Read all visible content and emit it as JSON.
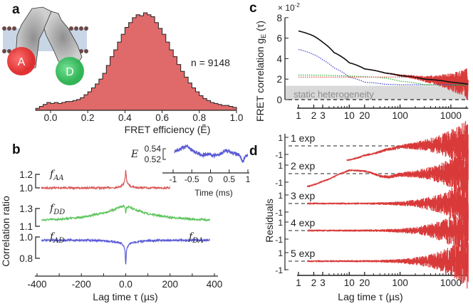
{
  "panel_labels": {
    "a": "a",
    "b": "b",
    "c": "c",
    "d": "d"
  },
  "cartoon": {
    "acceptor_label": "A",
    "donor_label": "D"
  },
  "colors": {
    "hist_fill": "#e06a6a",
    "red": "#d93a3a",
    "green": "#5cc45c",
    "blue": "#5b5bd6",
    "fit": "#111111",
    "static_band": "#d9d9d9"
  },
  "chart_data": [
    {
      "id": "a",
      "type": "bar",
      "title": "",
      "xlabel": "FRET efficiency (Ẽ)",
      "xlim": [
        -0.08,
        1.0
      ],
      "bin_width": 0.02,
      "bin_start": -0.08,
      "values_relative": [
        0.02,
        0.04,
        0.06,
        0.08,
        0.07,
        0.08,
        0.07,
        0.08,
        0.09,
        0.09,
        0.1,
        0.11,
        0.13,
        0.16,
        0.19,
        0.23,
        0.27,
        0.32,
        0.38,
        0.46,
        0.55,
        0.62,
        0.7,
        0.78,
        0.85,
        0.9,
        0.95,
        0.98,
        0.97,
        1.0,
        0.98,
        0.96,
        0.9,
        0.84,
        0.78,
        0.7,
        0.62,
        0.55,
        0.47,
        0.4,
        0.34,
        0.28,
        0.23,
        0.19,
        0.15,
        0.12,
        0.1,
        0.08,
        0.07,
        0.06,
        0.05,
        0.05,
        0.04,
        0.03
      ],
      "xticks": [
        0.0,
        0.2,
        0.4,
        0.6,
        0.8,
        1.0
      ],
      "xtick_labels": [
        "0.0",
        "0.2",
        "0.4",
        "0.6",
        "0.8",
        "1.0"
      ],
      "annotation": "n = 9148"
    },
    {
      "id": "b",
      "type": "line",
      "xlabel": "Lag time τ (µs)",
      "ylabel": "Correlation ratio",
      "xlim": [
        -400,
        400
      ],
      "xticks": [
        -400,
        -200,
        0,
        200,
        400
      ],
      "xtick_labels": [
        "-400",
        "-200",
        "0.0",
        "200",
        "400"
      ],
      "series": [
        {
          "name": "f_AA",
          "label": "fAA",
          "sub": "AA",
          "color": "#d95a5a",
          "ticks": [
            1.2,
            1.0
          ],
          "tick_labels": [
            "1.2",
            "1.0"
          ],
          "x": [
            -380,
            -200,
            -100,
            -50,
            -25,
            -12,
            -6,
            -3,
            0,
            3,
            6,
            12,
            25,
            50,
            100,
            200
          ],
          "y": [
            1.0,
            1.0,
            1.0,
            1.005,
            1.02,
            1.05,
            1.09,
            1.14,
            1.27,
            1.14,
            1.09,
            1.05,
            1.02,
            1.005,
            1.0,
            1.0
          ]
        },
        {
          "name": "f_DD",
          "label": "fDD",
          "sub": "DD",
          "color": "#5cc45c",
          "ticks": [
            1.3,
            1.1
          ],
          "tick_labels": [
            "1.3",
            "1.1"
          ],
          "x": [
            -380,
            -300,
            -200,
            -100,
            -50,
            -20,
            -8,
            -3,
            0,
            3,
            8,
            20,
            50,
            100,
            200,
            300,
            380
          ],
          "y": [
            1.17,
            1.18,
            1.2,
            1.25,
            1.29,
            1.32,
            1.33,
            1.3,
            1.24,
            1.3,
            1.32,
            1.31,
            1.28,
            1.24,
            1.2,
            1.18,
            1.17
          ]
        },
        {
          "name": "f_AD / f_DA",
          "label": "fAD",
          "sub": "AD",
          "label2_sub": "DA",
          "color": "#5b5bd6",
          "ticks": [
            1.0,
            0.8
          ],
          "tick_labels": [
            "1.0",
            "0.8"
          ],
          "x": [
            -380,
            -200,
            -100,
            -50,
            -20,
            -8,
            -3,
            0,
            3,
            8,
            20,
            50,
            100,
            200,
            380
          ],
          "y": [
            0.97,
            0.97,
            0.965,
            0.955,
            0.94,
            0.91,
            0.86,
            0.72,
            0.86,
            0.91,
            0.94,
            0.955,
            0.965,
            0.97,
            0.97
          ]
        }
      ]
    },
    {
      "id": "b-inset",
      "type": "line",
      "xlabel": "Time (ms)",
      "ylabel": "E",
      "xlim": [
        -1,
        1
      ],
      "xticks": [
        -1,
        -0.5,
        0,
        0.5,
        1
      ],
      "xtick_labels": [
        "-1",
        "-0.5",
        "0",
        "0.5",
        "1"
      ],
      "yticks": [
        0.54,
        0.52
      ],
      "ytick_labels": [
        "0.54",
        "0.52"
      ],
      "x": [
        -0.95,
        -0.8,
        -0.65,
        -0.5,
        -0.35,
        -0.2,
        -0.05,
        0.1,
        0.25,
        0.4,
        0.55,
        0.7,
        0.8,
        0.86,
        0.95
      ],
      "y": [
        0.535,
        0.54,
        0.545,
        0.538,
        0.532,
        0.528,
        0.53,
        0.527,
        0.53,
        0.536,
        0.533,
        0.53,
        0.525,
        0.515,
        0.528
      ]
    },
    {
      "id": "c",
      "type": "line",
      "xscale": "log",
      "xlim": [
        1,
        2200
      ],
      "ylim": [
        0,
        8
      ],
      "ylabel": "FRET correlation g_E(τ)",
      "ylabel_main": "FRET correlation ",
      "ylabel_g": "g",
      "ylabel_sub": "E",
      "ylabel_tail": " (τ)",
      "y_multiplier": "× 10",
      "y_multiplier_exp": "-2",
      "yticks": [
        0,
        2,
        4,
        6,
        8
      ],
      "ytick_labels": [
        "0",
        "2",
        "4",
        "6",
        "8"
      ],
      "xticks_labeled": [
        1,
        2,
        3,
        10,
        20,
        100,
        1000
      ],
      "xtick_labels": [
        "1",
        "2",
        "3",
        "10",
        "20",
        "100",
        "1000"
      ],
      "xticks_minor": [
        4,
        5,
        6,
        7,
        8,
        9,
        30,
        40,
        50,
        60,
        70,
        80,
        90,
        200,
        300,
        400,
        500,
        600,
        700,
        800,
        900,
        2000
      ],
      "band_label": "static heterogeneity",
      "band_range": [
        0,
        1.35
      ],
      "series": [
        {
          "name": "fit",
          "style": "solid",
          "color": "#111111",
          "x": [
            1,
            2,
            3,
            5,
            10,
            20,
            50,
            100,
            300,
            1000,
            2200
          ],
          "y": [
            6.7,
            6.2,
            5.6,
            4.6,
            3.6,
            3.0,
            2.6,
            2.35,
            2.0,
            1.7,
            1.5
          ]
        },
        {
          "name": "component-blue",
          "style": "dotted",
          "color": "#3b3bd6",
          "x": [
            1,
            2,
            3,
            5,
            10,
            20,
            50,
            100,
            2200
          ],
          "y": [
            4.9,
            4.4,
            3.9,
            3.1,
            2.2,
            1.7,
            1.5,
            1.45,
            1.45
          ]
        },
        {
          "name": "component-green",
          "style": "dotted",
          "color": "#2db52d",
          "x": [
            1,
            10,
            50,
            100,
            300,
            2200
          ],
          "y": [
            2.4,
            2.3,
            2.1,
            1.8,
            1.45,
            1.4
          ]
        },
        {
          "name": "component-red",
          "style": "dotted",
          "color": "#d93a3a",
          "x": [
            1,
            1000,
            2200
          ],
          "y": [
            2.2,
            2.2,
            2.2
          ]
        }
      ]
    },
    {
      "id": "d",
      "type": "line",
      "xscale": "log",
      "xlim": [
        1,
        2200
      ],
      "xlabel": "Lag time τ (µs)",
      "ylabel": "Residuals",
      "xticks_labeled": [
        1,
        2,
        3,
        10,
        20,
        100,
        1000
      ],
      "xtick_labels": [
        "1",
        "2",
        "3",
        "10",
        "20",
        "100",
        "1000"
      ],
      "ytick_labels": [
        "1",
        "-1"
      ],
      "rows": [
        {
          "label": "1 exp",
          "x": [
            9,
            20,
            50,
            100,
            300,
            1000,
            2200
          ],
          "y": [
            -1.7,
            -1.1,
            -0.5,
            -0.1,
            0.1,
            0.1,
            0
          ]
        },
        {
          "label": "2 exp",
          "x": [
            1.5,
            3,
            6,
            10,
            20,
            40,
            60,
            100,
            300,
            2200
          ],
          "y": [
            -1.5,
            -0.9,
            -0.1,
            0.4,
            0.3,
            -0.3,
            -0.4,
            -0.1,
            0,
            0
          ]
        },
        {
          "label": "3 exp",
          "x": [
            1.5,
            2200
          ],
          "y": [
            0,
            0
          ]
        },
        {
          "label": "4 exp",
          "x": [
            1.5,
            2200
          ],
          "y": [
            0,
            0
          ]
        },
        {
          "label": "5 exp",
          "x": [
            1.5,
            2200
          ],
          "y": [
            0,
            0
          ]
        }
      ]
    }
  ]
}
